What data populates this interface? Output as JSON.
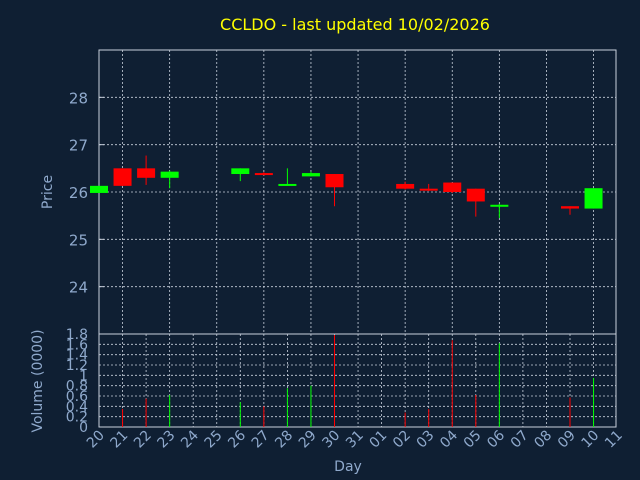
{
  "colors": {
    "background": "#0f1f33",
    "title": "#ffff00",
    "axis_text": "#8fa9cc",
    "grid": "#c8d0dc",
    "up": "#00ff00",
    "down": "#ff0000"
  },
  "chart_data": [
    {
      "type": "candlestick",
      "title": "CCLDO - last updated 10/02/2026",
      "ylabel": "Price",
      "ylim": [
        23,
        29
      ],
      "yticks": [
        24,
        25,
        26,
        27,
        28
      ],
      "grid": true,
      "categories": [
        "20",
        "21",
        "22",
        "23",
        "24",
        "25",
        "26",
        "27",
        "28",
        "29",
        "30",
        "31",
        "01",
        "02",
        "03",
        "04",
        "05",
        "06",
        "07",
        "08",
        "09",
        "10",
        "11"
      ],
      "candles": [
        {
          "x": "20",
          "open": 25.98,
          "high": 26.13,
          "low": 25.98,
          "close": 26.13
        },
        {
          "x": "21",
          "open": 26.5,
          "high": 26.5,
          "low": 26.13,
          "close": 26.13
        },
        {
          "x": "22",
          "open": 26.5,
          "high": 26.77,
          "low": 26.15,
          "close": 26.3
        },
        {
          "x": "23",
          "open": 26.3,
          "high": 26.45,
          "low": 26.08,
          "close": 26.43
        },
        {
          "x": "26",
          "open": 26.38,
          "high": 26.5,
          "low": 26.23,
          "close": 26.5
        },
        {
          "x": "27",
          "open": 26.4,
          "high": 26.42,
          "low": 26.35,
          "close": 26.37
        },
        {
          "x": "28",
          "open": 26.15,
          "high": 26.5,
          "low": 26.15,
          "close": 26.17
        },
        {
          "x": "29",
          "open": 26.33,
          "high": 26.43,
          "low": 26.33,
          "close": 26.4
        },
        {
          "x": "30",
          "open": 26.38,
          "high": 26.38,
          "low": 25.7,
          "close": 26.1
        },
        {
          "x": "02",
          "open": 26.17,
          "high": 26.22,
          "low": 26.05,
          "close": 26.07
        },
        {
          "x": "03",
          "open": 26.07,
          "high": 26.17,
          "low": 26.02,
          "close": 26.05
        },
        {
          "x": "04",
          "open": 26.2,
          "high": 26.2,
          "low": 25.98,
          "close": 26.0
        },
        {
          "x": "05",
          "open": 26.07,
          "high": 26.07,
          "low": 25.48,
          "close": 25.8
        },
        {
          "x": "06",
          "open": 25.7,
          "high": 25.75,
          "low": 25.45,
          "close": 25.73
        },
        {
          "x": "09",
          "open": 25.7,
          "high": 25.7,
          "low": 25.52,
          "close": 25.65
        },
        {
          "x": "10",
          "open": 25.65,
          "high": 26.08,
          "low": 25.65,
          "close": 26.08
        }
      ]
    },
    {
      "type": "bar",
      "ylabel": "Volume (0000)",
      "xlabel": "Day",
      "ylim": [
        0,
        1.8
      ],
      "yticks": [
        0,
        0.2,
        0.4,
        0.6,
        0.8,
        1.0,
        1.2,
        1.4,
        1.6,
        1.8
      ],
      "ytick_labels": [
        "0",
        "0.2",
        "0.4",
        "0.6",
        "0.8",
        "1",
        "1.2",
        "1.4",
        "1.6",
        "1.8"
      ],
      "grid": true,
      "categories": [
        "20",
        "21",
        "22",
        "23",
        "24",
        "25",
        "26",
        "27",
        "28",
        "29",
        "30",
        "31",
        "01",
        "02",
        "03",
        "04",
        "05",
        "06",
        "07",
        "08",
        "09",
        "10",
        "11"
      ],
      "bars": [
        {
          "x": "21",
          "value": 0.35,
          "dir": "down"
        },
        {
          "x": "22",
          "value": 0.55,
          "dir": "down"
        },
        {
          "x": "23",
          "value": 0.62,
          "dir": "up"
        },
        {
          "x": "26",
          "value": 0.48,
          "dir": "up"
        },
        {
          "x": "27",
          "value": 0.4,
          "dir": "down"
        },
        {
          "x": "28",
          "value": 0.75,
          "dir": "up"
        },
        {
          "x": "29",
          "value": 0.8,
          "dir": "up"
        },
        {
          "x": "30",
          "value": 1.78,
          "dir": "down"
        },
        {
          "x": "02",
          "value": 0.28,
          "dir": "down"
        },
        {
          "x": "03",
          "value": 0.35,
          "dir": "down"
        },
        {
          "x": "04",
          "value": 1.68,
          "dir": "down"
        },
        {
          "x": "05",
          "value": 0.62,
          "dir": "down"
        },
        {
          "x": "06",
          "value": 1.62,
          "dir": "up"
        },
        {
          "x": "09",
          "value": 0.57,
          "dir": "down"
        },
        {
          "x": "10",
          "value": 0.95,
          "dir": "up"
        }
      ]
    }
  ]
}
